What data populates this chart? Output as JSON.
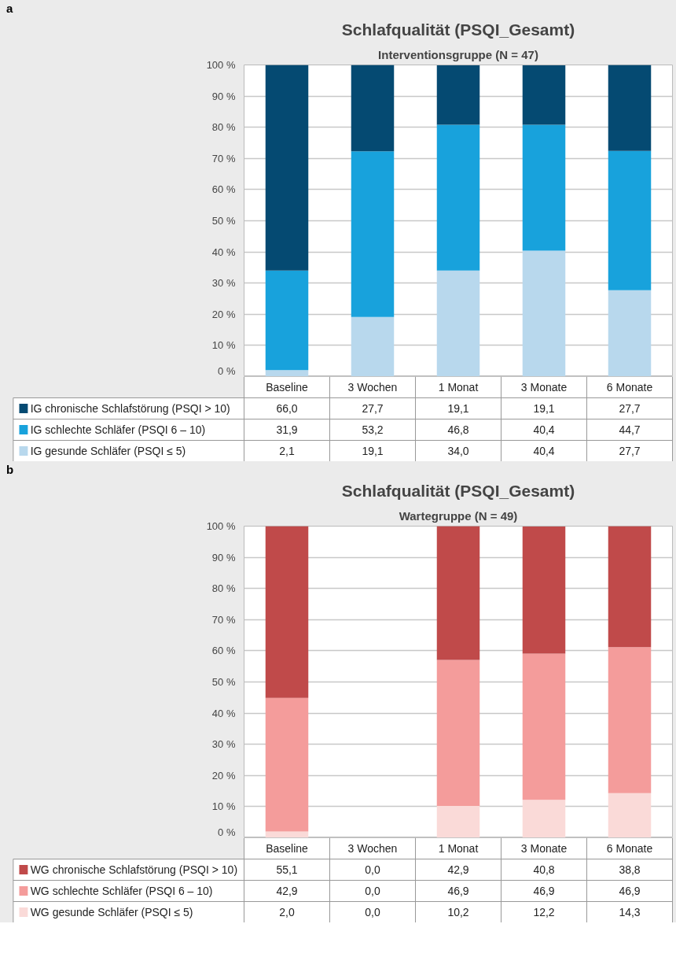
{
  "chart_data": [
    {
      "type": "bar",
      "stacked": true,
      "title": "Schlafqualität (PSQI_Gesamt)",
      "subtitle": "Interventionsgruppe (N = 47)",
      "annotations": [
        "a"
      ],
      "categories": [
        "Baseline",
        "3 Wochen",
        "1 Monat",
        "3 Monate",
        "6 Monate"
      ],
      "series": [
        {
          "name": "IG gesunde Schläfer (PSQI ≤ 5)",
          "color": "#b8d8ed",
          "values": [
            2.1,
            19.1,
            34.0,
            40.4,
            27.7
          ],
          "value_labels": [
            "2,1",
            "19,1",
            "34,0",
            "40,4",
            "27,7"
          ]
        },
        {
          "name": "IG schlechte Schläfer (PSQI 6 – 10)",
          "color": "#18a2dc",
          "values": [
            31.9,
            53.2,
            46.8,
            40.4,
            44.7
          ],
          "value_labels": [
            "31,9",
            "53,2",
            "46,8",
            "40,4",
            "44,7"
          ]
        },
        {
          "name": "IG chronische Schlafstörung (PSQI > 10)",
          "color": "#054a72",
          "values": [
            66.0,
            27.7,
            19.1,
            19.1,
            27.7
          ],
          "value_labels": [
            "66,0",
            "27,7",
            "19,1",
            "19,1",
            "27,7"
          ]
        }
      ],
      "ylim": [
        0,
        100
      ],
      "yticks": [
        {
          "value": 0,
          "label": "0 %"
        },
        {
          "value": 10,
          "label": "10 %"
        },
        {
          "value": 20,
          "label": "20 %"
        },
        {
          "value": 30,
          "label": "30 %"
        },
        {
          "value": 40,
          "label": "40 %"
        },
        {
          "value": 50,
          "label": "50 %"
        },
        {
          "value": 60,
          "label": "60 %"
        },
        {
          "value": 70,
          "label": "70 %"
        },
        {
          "value": 80,
          "label": "80 %"
        },
        {
          "value": 90,
          "label": "90 %"
        },
        {
          "value": 100,
          "label": "100 %"
        }
      ],
      "grid": "y",
      "legend": "bottom"
    },
    {
      "type": "bar",
      "stacked": true,
      "title": "Schlafqualität (PSQI_Gesamt)",
      "subtitle": "Wartegruppe (N = 49)",
      "annotations": [
        "b"
      ],
      "categories": [
        "Baseline",
        "3 Wochen",
        "1 Monat",
        "3 Monate",
        "6 Monate"
      ],
      "series": [
        {
          "name": "WG gesunde Schläfer (PSQI ≤ 5)",
          "color": "#fadad8",
          "values": [
            2.0,
            0.0,
            10.2,
            12.2,
            14.3
          ],
          "value_labels": [
            "2,0",
            "0,0",
            "10,2",
            "12,2",
            "14,3"
          ]
        },
        {
          "name": "WG schlechte Schläfer (PSQI 6 – 10)",
          "color": "#f49c9b",
          "values": [
            42.9,
            0.0,
            46.9,
            46.9,
            46.9
          ],
          "value_labels": [
            "42,9",
            "0,0",
            "46,9",
            "46,9",
            "46,9"
          ]
        },
        {
          "name": "WG chronische Schlafstörung (PSQI > 10)",
          "color": "#c04a4a",
          "values": [
            55.1,
            0.0,
            42.9,
            40.8,
            38.8
          ],
          "value_labels": [
            "55,1",
            "0,0",
            "42,9",
            "40,8",
            "38,8"
          ]
        }
      ],
      "ylim": [
        0,
        100
      ],
      "yticks": [
        {
          "value": 0,
          "label": "0 %"
        },
        {
          "value": 10,
          "label": "10 %"
        },
        {
          "value": 20,
          "label": "20 %"
        },
        {
          "value": 30,
          "label": "30 %"
        },
        {
          "value": 40,
          "label": "40 %"
        },
        {
          "value": 50,
          "label": "50 %"
        },
        {
          "value": 60,
          "label": "60 %"
        },
        {
          "value": 70,
          "label": "70 %"
        },
        {
          "value": 80,
          "label": "80 %"
        },
        {
          "value": 90,
          "label": "90 %"
        },
        {
          "value": 100,
          "label": "100 %"
        }
      ],
      "grid": "y",
      "legend": "bottom"
    }
  ]
}
